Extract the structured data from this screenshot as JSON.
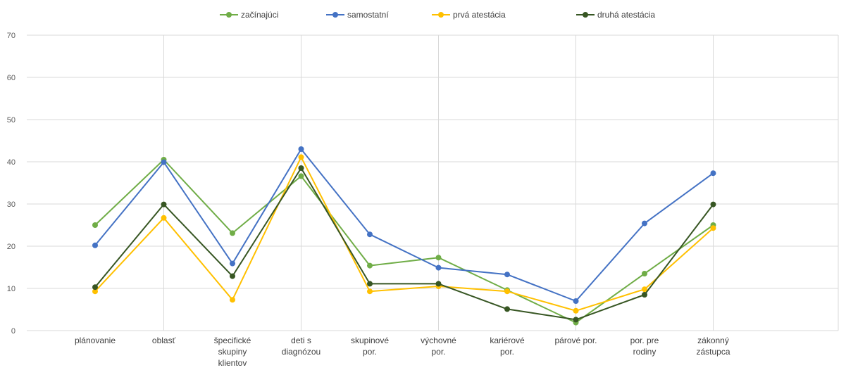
{
  "chart_data": {
    "type": "line",
    "title": "",
    "xlabel": "",
    "ylabel": "",
    "ylim": [
      0,
      70
    ],
    "yticks": [
      "0",
      "10",
      "20",
      "30",
      "40",
      "50",
      "60",
      "70"
    ],
    "grid": "both",
    "legend_position": "top",
    "categories": [
      [
        "plánovanie"
      ],
      [
        "oblasť"
      ],
      [
        "špecifické",
        "skupiny",
        "klientov"
      ],
      [
        "deti s",
        "diagnózou"
      ],
      [
        "skupinové",
        "por."
      ],
      [
        "výchovné",
        "por."
      ],
      [
        "kariérové",
        "por."
      ],
      [
        "párové por."
      ],
      [
        "por. pre",
        "rodiny"
      ],
      [
        "zákonný",
        "zástupca"
      ]
    ],
    "series": [
      {
        "name": "začínajúci",
        "color": "#70ad47",
        "values": [
          25,
          40.5,
          23.1,
          36.6,
          15.4,
          17.3,
          9.6,
          1.9,
          13.5,
          25
        ]
      },
      {
        "name": "samostatní",
        "color": "#4472c4",
        "values": [
          20.2,
          39.9,
          15.9,
          43.0,
          22.8,
          14.9,
          13.3,
          7.0,
          25.4,
          37.3
        ]
      },
      {
        "name": "prvá atestácia",
        "color": "#ffc000",
        "values": [
          9.3,
          26.7,
          7.3,
          41.1,
          9.3,
          10.5,
          9.3,
          4.7,
          9.8,
          24.3
        ]
      },
      {
        "name": "druhá atestácia",
        "color": "#375623",
        "values": [
          10.3,
          29.9,
          12.9,
          38.5,
          11.1,
          11.1,
          5.1,
          2.6,
          8.5,
          29.9
        ]
      }
    ]
  }
}
